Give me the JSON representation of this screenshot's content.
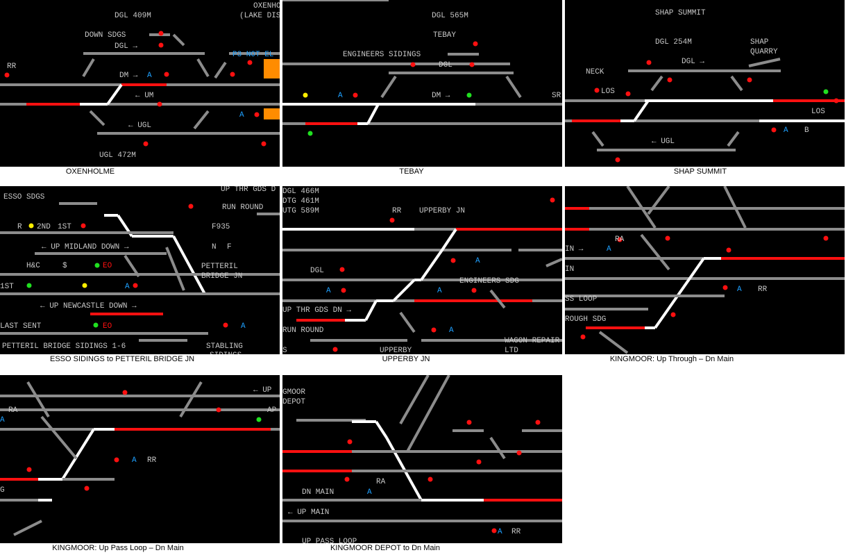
{
  "panels": [
    {
      "caption": "OXENHOLME",
      "labels": [
        "DGL 409M",
        "OXENHO",
        "(LAKE DIS",
        "DOWN SDGS",
        "DGL →",
        "P3 NOT EL",
        "RR",
        "DM →",
        "A",
        "← UM",
        "A",
        "← UGL",
        "UGL 472M"
      ]
    },
    {
      "caption": "TEBAY",
      "labels": [
        "DGL 565M",
        "TEBAY",
        "ENGINEERS SIDINGS",
        "DGL",
        "A",
        "DM →",
        "SR"
      ]
    },
    {
      "caption": "SHAP SUMMIT",
      "labels": [
        "SHAP SUMMIT",
        "DGL 254M",
        "SHAP",
        "QUARRY",
        "DGL →",
        "NECK",
        "LOS",
        "LOS",
        "A",
        "B",
        "← UGL"
      ]
    },
    {
      "caption": "ESSO SIDINGS to PETTERIL BRIDGE JN",
      "labels": [
        "ESSO SDGS",
        "UP THR GDS D",
        "RUN ROUND",
        "R",
        "2ND",
        "1ST",
        "F935",
        "← UP MIDLAND DOWN →",
        "N",
        "F",
        "H&C",
        "$",
        "EO",
        "PETTERIL",
        "BRIDGE JN",
        "1ST",
        "A",
        "← UP NEWCASTLE DOWN →",
        "LAST SENT",
        "EO",
        "A",
        "PETTERIL BRIDGE SIDINGS 1-6",
        "STABLING",
        "SIDINGS"
      ]
    },
    {
      "caption": "UPPERBY JN",
      "labels": [
        "DGL 466M",
        "DTG 461M",
        "UTG 589M",
        "RR",
        "UPPERBY JN",
        "A",
        "DGL",
        "ENGINEERS SDG",
        "A",
        "A",
        "UP THR GDS DN →",
        "RUN ROUND",
        "A",
        "WAGON REPAIR",
        "LTD",
        "S",
        "UPPERBY"
      ]
    },
    {
      "caption": "KINGMOOR: Up Through – Dn Main",
      "labels": [
        "RA",
        "A",
        "IN →",
        "IN",
        "A",
        "RR",
        "SS LOOP",
        "ROUGH SDG"
      ]
    },
    {
      "caption": "KINGMOOR: Up Pass Loop – Dn Main",
      "labels": [
        "RA",
        "A",
        "← UP",
        "AP",
        "A",
        "RR",
        "G"
      ]
    },
    {
      "caption": "KINGMOOR DEPOT to Dn Main",
      "labels": [
        "GMOOR",
        "DEPOT",
        "RA",
        "DN MAIN",
        "A",
        "← UP MAIN",
        "UP PASS LOOP",
        "A",
        "RR"
      ]
    }
  ]
}
